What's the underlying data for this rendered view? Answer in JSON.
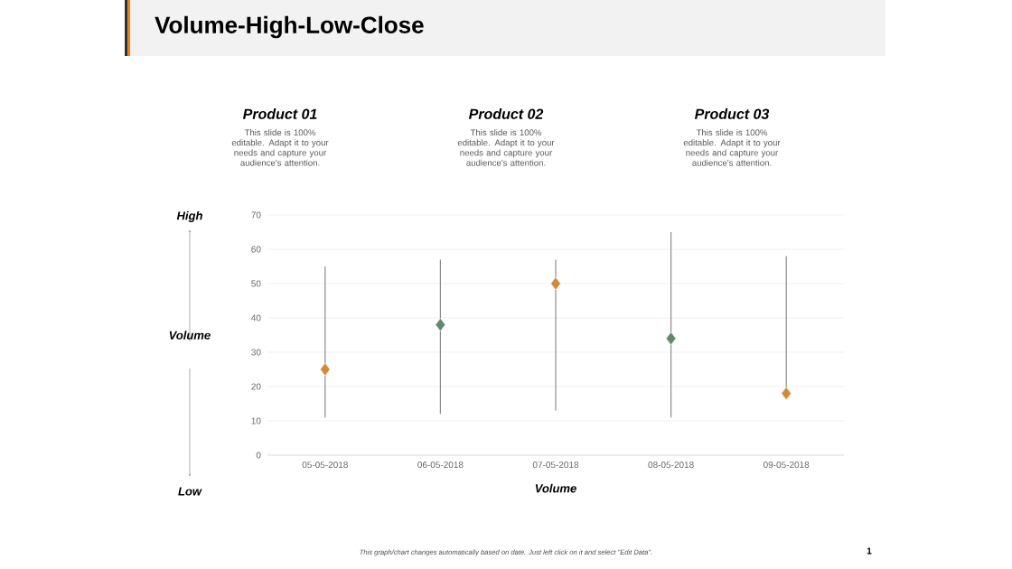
{
  "chart_data": {
    "type": "scatter",
    "title": "Volume-High-Low-Close",
    "xlabel": "Volume",
    "ylabel": "Volume",
    "categories": [
      "05-05-2018",
      "06-05-2018",
      "07-05-2018",
      "08-05-2018",
      "09-05-2018"
    ],
    "values": [
      25,
      38,
      50,
      34,
      18
    ],
    "errors": [
      [
        11,
        55
      ],
      [
        12,
        57
      ],
      [
        13,
        57
      ],
      [
        11,
        65
      ],
      [
        18,
        58
      ]
    ],
    "colors": [
      "#d08b3a",
      "#5f8a6e",
      "#d08b3a",
      "#5f8a6e",
      "#d08b3a"
    ],
    "marker": "diamond",
    "grid": "y",
    "ylim": [
      0,
      70
    ],
    "yticks": [
      0,
      10,
      20,
      30,
      40,
      50,
      60,
      70
    ],
    "annotations": [
      "High",
      "Low",
      "Product 01",
      "Product 02",
      "Product 03",
      "This slide is 100% editable. Adapt it to your needs and capture your audience's attention.",
      "This slide is 100% editable. Adapt it to your needs and capture your audience's attention.",
      "This slide is 100% editable. Adapt it to your needs and capture your audience's attention.",
      "This graph/chart changes automatically based on date. Just left click on it and select \"Edit Data\".",
      "1"
    ]
  }
}
